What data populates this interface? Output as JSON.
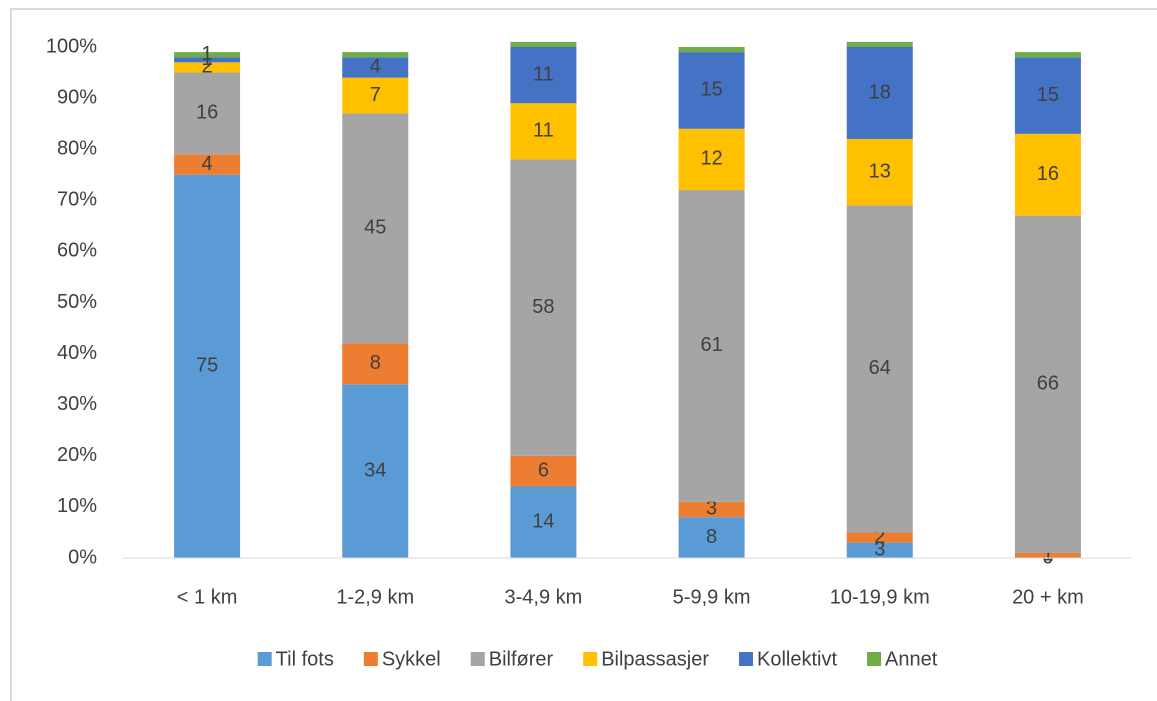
{
  "chart_data": {
    "type": "stacked_bar",
    "categories": [
      "< 1 km",
      "1-2,9 km",
      "3-4,9 km",
      "5-9,9 km",
      "10-19,9 km",
      "20 + km"
    ],
    "series": [
      {
        "name": "Til fots",
        "color": "#5B9BD5",
        "values": [
          75,
          34,
          14,
          8,
          3,
          0
        ]
      },
      {
        "name": "Sykkel",
        "color": "#ED7D31",
        "values": [
          4,
          8,
          6,
          3,
          2,
          1
        ]
      },
      {
        "name": "Bilfører",
        "color": "#A5A5A5",
        "values": [
          16,
          45,
          58,
          61,
          64,
          66
        ]
      },
      {
        "name": "Bilpassasjer",
        "color": "#FFC000",
        "values": [
          2,
          7,
          11,
          12,
          13,
          16
        ]
      },
      {
        "name": "Kollektivt",
        "color": "#4472C4",
        "values": [
          1,
          4,
          11,
          15,
          18,
          15
        ]
      },
      {
        "name": "Annet",
        "color": "#70AD47",
        "values": [
          1,
          1,
          1,
          1,
          1,
          1
        ],
        "value_labels": [
          "1",
          null,
          null,
          null,
          null,
          null
        ]
      }
    ],
    "ylim": [
      0,
      100
    ],
    "yticks": [
      {
        "value": 0,
        "label": "0%"
      },
      {
        "value": 10,
        "label": "10%"
      },
      {
        "value": 20,
        "label": "20%"
      },
      {
        "value": 30,
        "label": "30%"
      },
      {
        "value": 40,
        "label": "40%"
      },
      {
        "value": 50,
        "label": "50%"
      },
      {
        "value": 60,
        "label": "60%"
      },
      {
        "value": 70,
        "label": "70%"
      },
      {
        "value": 80,
        "label": "80%"
      },
      {
        "value": 90,
        "label": "90%"
      },
      {
        "value": 100,
        "label": "100%"
      }
    ],
    "grid": false,
    "legend": "bottom"
  }
}
